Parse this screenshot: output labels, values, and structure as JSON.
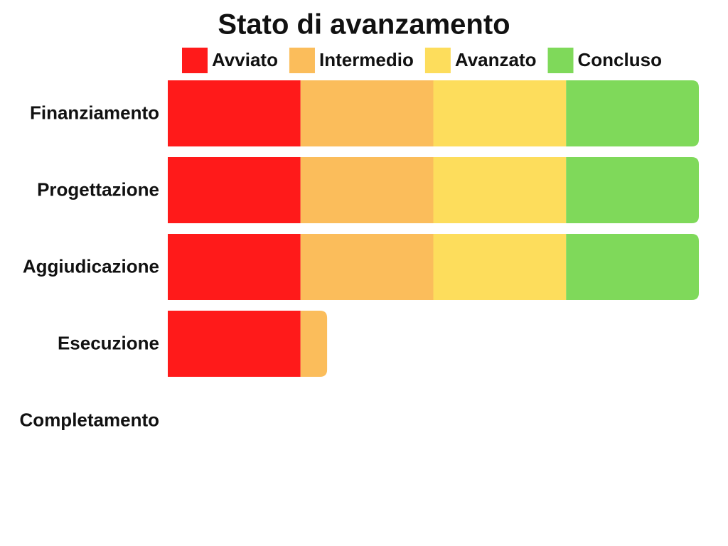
{
  "chart_data": {
    "type": "stacked-bar-horizontal",
    "title": "Stato di avanzamento",
    "categories": [
      "Finanziamento",
      "Progettazione",
      "Aggiudicazione",
      "Esecuzione",
      "Completamento"
    ],
    "series": [
      {
        "name": "Avviato",
        "color": "#ff1a1a",
        "values": [
          25,
          25,
          25,
          25,
          0
        ]
      },
      {
        "name": "Intermedio",
        "color": "#fbbd5b",
        "values": [
          25,
          25,
          25,
          5,
          0
        ]
      },
      {
        "name": "Avanzato",
        "color": "#fddd5c",
        "values": [
          25,
          25,
          25,
          0,
          0
        ]
      },
      {
        "name": "Concluso",
        "color": "#7fd95a",
        "values": [
          25,
          25,
          25,
          0,
          0
        ]
      }
    ]
  }
}
